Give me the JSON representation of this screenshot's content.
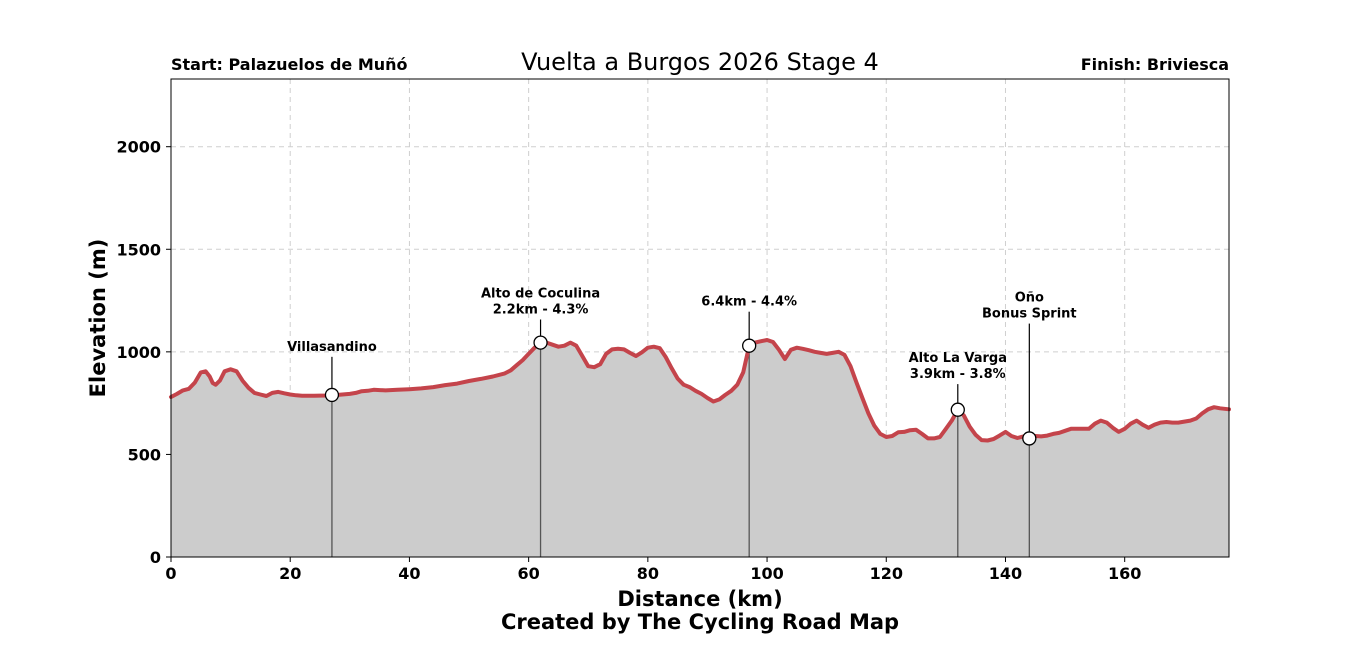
{
  "chart_data": {
    "type": "area",
    "title": "Vuelta a Burgos 2026 Stage 4",
    "start_label": "Start: Palazuelos de Muñó",
    "finish_label": "Finish: Briviesca",
    "xlabel": "Distance (km)",
    "ylabel": "Elevation (m)",
    "footer": "Created by The Cycling Road Map",
    "xlim": [
      0,
      177.5
    ],
    "ylim": [
      0,
      2330
    ],
    "x_ticks": [
      0,
      20,
      40,
      60,
      80,
      100,
      120,
      140,
      160
    ],
    "y_ticks": [
      0,
      500,
      1000,
      1500,
      2000
    ],
    "grid": true,
    "line_color": "#c4444b",
    "fill_color": "#cccccc",
    "profile": [
      [
        0,
        780
      ],
      [
        1,
        795
      ],
      [
        2,
        812
      ],
      [
        3,
        820
      ],
      [
        4,
        850
      ],
      [
        5,
        900
      ],
      [
        5.8,
        905
      ],
      [
        6.5,
        880
      ],
      [
        7,
        848
      ],
      [
        7.5,
        840
      ],
      [
        8.2,
        860
      ],
      [
        9,
        905
      ],
      [
        10,
        915
      ],
      [
        11,
        905
      ],
      [
        12,
        860
      ],
      [
        13,
        825
      ],
      [
        14,
        800
      ],
      [
        15,
        792
      ],
      [
        16,
        785
      ],
      [
        17,
        800
      ],
      [
        18,
        805
      ],
      [
        19,
        798
      ],
      [
        20,
        792
      ],
      [
        21,
        788
      ],
      [
        22,
        786
      ],
      [
        24,
        786
      ],
      [
        26,
        787
      ],
      [
        27,
        790
      ],
      [
        28,
        790
      ],
      [
        30,
        795
      ],
      [
        31,
        800
      ],
      [
        32,
        808
      ],
      [
        33,
        810
      ],
      [
        34,
        815
      ],
      [
        36,
        812
      ],
      [
        38,
        815
      ],
      [
        40,
        818
      ],
      [
        42,
        822
      ],
      [
        44,
        828
      ],
      [
        46,
        838
      ],
      [
        48,
        845
      ],
      [
        50,
        858
      ],
      [
        52,
        868
      ],
      [
        54,
        880
      ],
      [
        56,
        895
      ],
      [
        57,
        910
      ],
      [
        58,
        935
      ],
      [
        59,
        960
      ],
      [
        60,
        990
      ],
      [
        61,
        1020
      ],
      [
        62,
        1045
      ],
      [
        63,
        1045
      ],
      [
        64,
        1035
      ],
      [
        65,
        1025
      ],
      [
        66,
        1030
      ],
      [
        67,
        1045
      ],
      [
        68,
        1030
      ],
      [
        69,
        980
      ],
      [
        70,
        930
      ],
      [
        71,
        925
      ],
      [
        72,
        940
      ],
      [
        73,
        990
      ],
      [
        74,
        1012
      ],
      [
        75,
        1015
      ],
      [
        76,
        1012
      ],
      [
        77,
        995
      ],
      [
        78,
        980
      ],
      [
        79,
        998
      ],
      [
        80,
        1020
      ],
      [
        81,
        1025
      ],
      [
        82,
        1018
      ],
      [
        83,
        975
      ],
      [
        84,
        920
      ],
      [
        85,
        870
      ],
      [
        86,
        840
      ],
      [
        87,
        828
      ],
      [
        88,
        810
      ],
      [
        89,
        795
      ],
      [
        90,
        775
      ],
      [
        91,
        758
      ],
      [
        92,
        768
      ],
      [
        93,
        790
      ],
      [
        94,
        810
      ],
      [
        95,
        840
      ],
      [
        96,
        900
      ],
      [
        97,
        1030
      ],
      [
        98,
        1045
      ],
      [
        99,
        1052
      ],
      [
        100,
        1058
      ],
      [
        101,
        1048
      ],
      [
        102,
        1010
      ],
      [
        103,
        965
      ],
      [
        104,
        1010
      ],
      [
        105,
        1020
      ],
      [
        106,
        1015
      ],
      [
        107,
        1008
      ],
      [
        108,
        1000
      ],
      [
        109,
        995
      ],
      [
        110,
        990
      ],
      [
        111,
        995
      ],
      [
        112,
        1000
      ],
      [
        113,
        985
      ],
      [
        114,
        930
      ],
      [
        115,
        850
      ],
      [
        116,
        775
      ],
      [
        117,
        700
      ],
      [
        118,
        640
      ],
      [
        119,
        600
      ],
      [
        120,
        585
      ],
      [
        121,
        590
      ],
      [
        122,
        608
      ],
      [
        123,
        610
      ],
      [
        124,
        618
      ],
      [
        125,
        620
      ],
      [
        126,
        600
      ],
      [
        127,
        578
      ],
      [
        128,
        578
      ],
      [
        129,
        585
      ],
      [
        130,
        625
      ],
      [
        131,
        665
      ],
      [
        132,
        718
      ],
      [
        133,
        690
      ],
      [
        134,
        635
      ],
      [
        135,
        595
      ],
      [
        136,
        570
      ],
      [
        137,
        568
      ],
      [
        138,
        575
      ],
      [
        139,
        592
      ],
      [
        140,
        610
      ],
      [
        141,
        590
      ],
      [
        142,
        580
      ],
      [
        143,
        588
      ],
      [
        144,
        578
      ],
      [
        145,
        590
      ],
      [
        146,
        588
      ],
      [
        147,
        592
      ],
      [
        148,
        600
      ],
      [
        149,
        605
      ],
      [
        150,
        615
      ],
      [
        151,
        625
      ],
      [
        152,
        625
      ],
      [
        153,
        625
      ],
      [
        154,
        625
      ],
      [
        155,
        650
      ],
      [
        156,
        665
      ],
      [
        157,
        655
      ],
      [
        158,
        630
      ],
      [
        159,
        610
      ],
      [
        160,
        625
      ],
      [
        161,
        650
      ],
      [
        162,
        665
      ],
      [
        163,
        645
      ],
      [
        164,
        630
      ],
      [
        165,
        645
      ],
      [
        166,
        655
      ],
      [
        167,
        658
      ],
      [
        168,
        655
      ],
      [
        169,
        655
      ],
      [
        170,
        660
      ],
      [
        171,
        665
      ],
      [
        172,
        675
      ],
      [
        173,
        700
      ],
      [
        174,
        720
      ],
      [
        175,
        730
      ],
      [
        176,
        725
      ],
      [
        177.5,
        720
      ]
    ],
    "annotations": [
      {
        "x": 27,
        "y": 790,
        "lines": [
          "Villasandino"
        ],
        "label_y": 1005
      },
      {
        "x": 62,
        "y": 1045,
        "lines": [
          "Alto de Coculina",
          "2.2km - 4.3%"
        ],
        "label_y": 1265
      },
      {
        "x": 97,
        "y": 1030,
        "lines": [
          "6.4km - 4.4%"
        ],
        "label_y": 1225
      },
      {
        "x": 132,
        "y": 718,
        "lines": [
          "Alto La Varga",
          "3.9km - 3.8%"
        ],
        "label_y": 950
      },
      {
        "x": 144,
        "y": 578,
        "lines": [
          "Oño",
          "Bonus Sprint"
        ],
        "label_y": 1245
      }
    ]
  }
}
